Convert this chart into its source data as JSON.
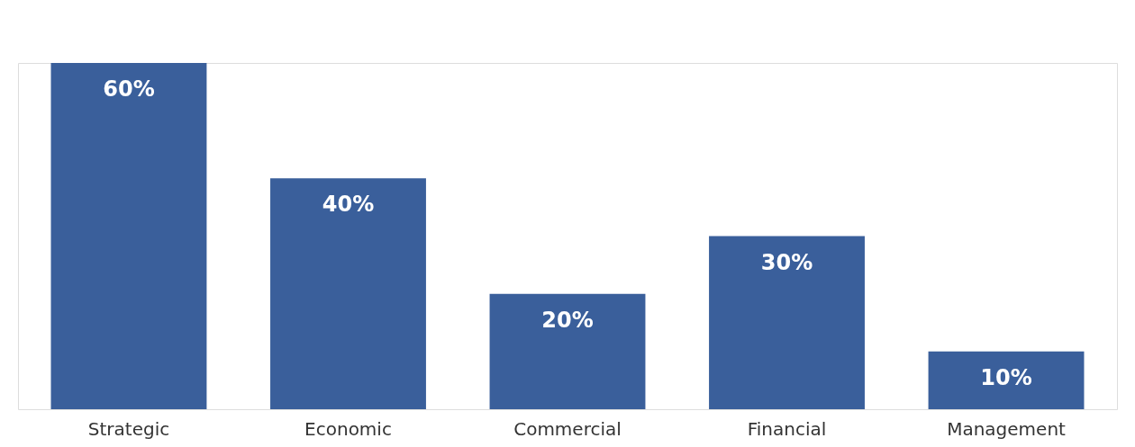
{
  "chart_data": {
    "type": "bar",
    "categories": [
      "Strategic",
      "Economic",
      "Commercial",
      "Financial",
      "Management"
    ],
    "values": [
      60,
      40,
      20,
      30,
      10
    ],
    "value_labels": [
      "60%",
      "40%",
      "20%",
      "30%",
      "10%"
    ],
    "color": "#3a5f9b"
  }
}
